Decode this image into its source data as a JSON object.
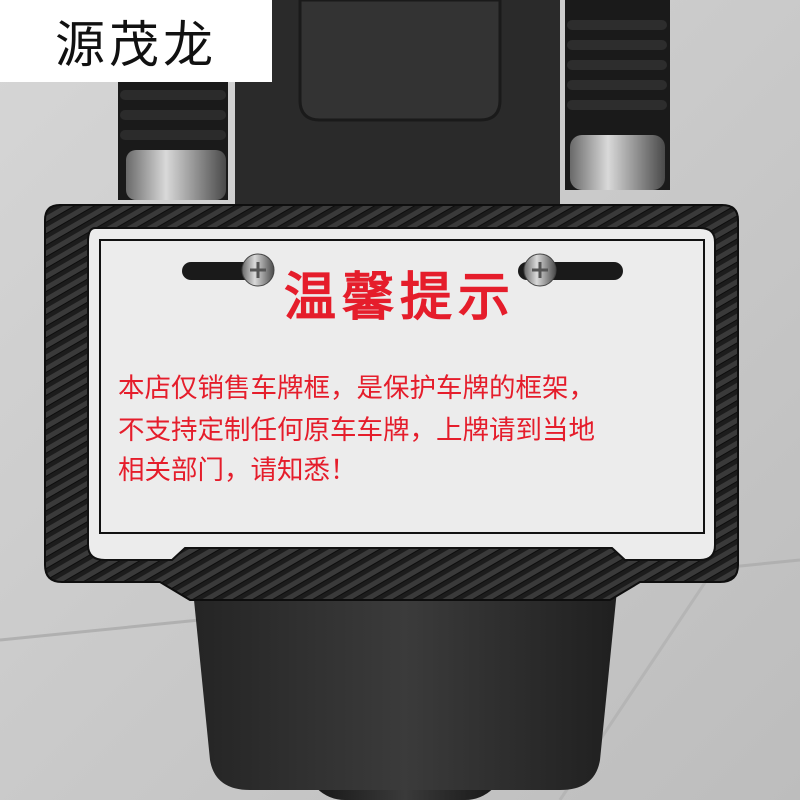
{
  "watermark": {
    "brand_text": "源茂龙"
  },
  "plate": {
    "title": "温馨提示",
    "lines": [
      "本店仅销售车牌框，是保护车牌的框架，",
      "不支持定制任何原车车牌，上牌请到当地",
      "相关部门，请知悉！"
    ]
  },
  "colors": {
    "notice_red": "#e51d2b",
    "plate_white": "#ececec",
    "frame_carbon": "#1e1e1e"
  }
}
